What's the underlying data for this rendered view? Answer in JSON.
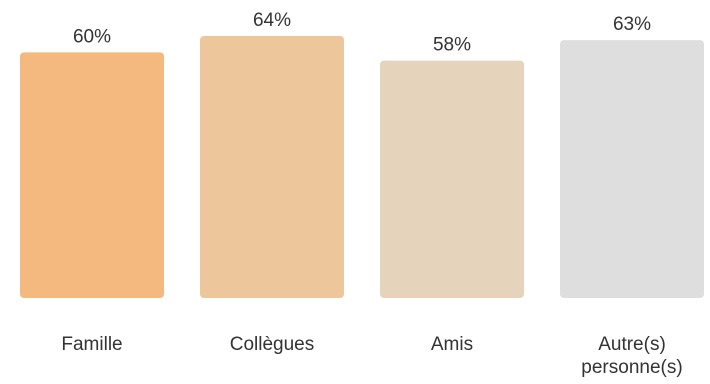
{
  "chart_data": {
    "type": "bar",
    "title": "",
    "xlabel": "",
    "ylabel": "",
    "categories": [
      "Famille",
      "Collègues",
      "Amis",
      "Autre(s) personne(s)"
    ],
    "category_lines": [
      [
        "Famille"
      ],
      [
        "Collègues"
      ],
      [
        "Amis"
      ],
      [
        "Autre(s)",
        "personne(s)"
      ]
    ],
    "values": [
      60,
      64,
      58,
      63
    ],
    "value_labels": [
      "60%",
      "64%",
      "58%",
      "63%"
    ],
    "unit": "%",
    "ylim": [
      0,
      64
    ],
    "colors": [
      "#F3B97E",
      "#EDC69C",
      "#E6D3BC",
      "#DEDEDE"
    ],
    "grid": false,
    "legend": "none"
  }
}
